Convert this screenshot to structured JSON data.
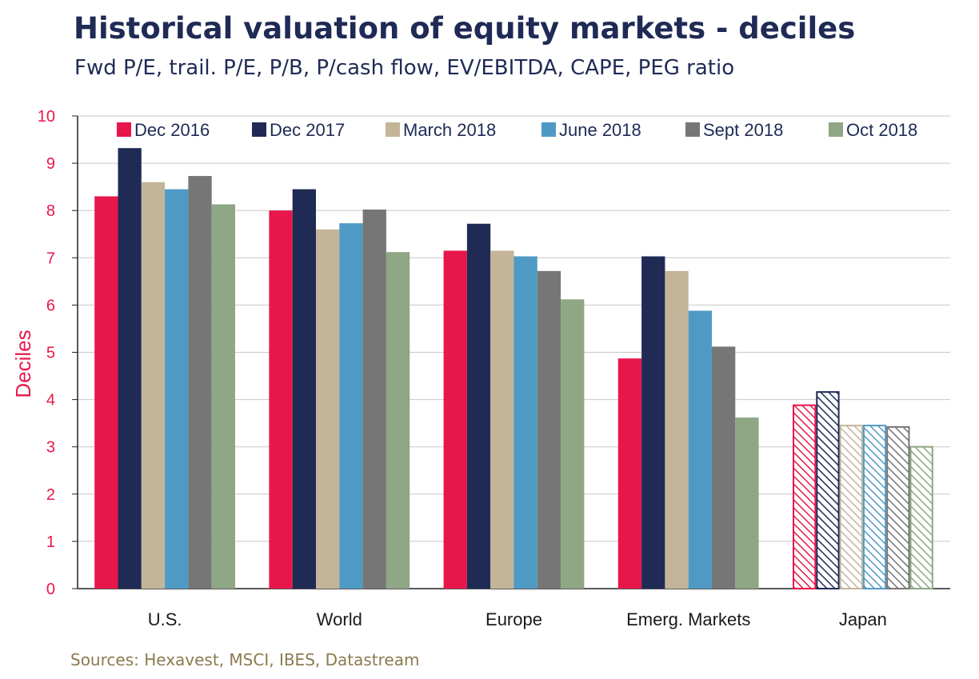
{
  "title": "Historical valuation of equity markets - deciles",
  "subtitle": "Fwd P/E, trail. P/E, P/B, P/cash flow, EV/EBITDA, CAPE, PEG ratio",
  "source": "Sources: Hexavest, MSCI, IBES, Datastream",
  "colors": {
    "title": "#1f2a55",
    "axis_label": "#e8174b",
    "source": "#8b7a4e",
    "grid": "#c8c8c8"
  },
  "chart_data": {
    "type": "bar",
    "ylabel": "Deciles",
    "ylim": [
      0,
      10
    ],
    "yticks": [
      "0",
      "1",
      "2",
      "3",
      "4",
      "5",
      "6",
      "7",
      "8",
      "9",
      "10"
    ],
    "grid": true,
    "legend_position": "top",
    "categories": [
      "U.S.",
      "World",
      "Europe",
      "Emerg. Markets",
      "Japan"
    ],
    "hatched_categories": [
      "Japan"
    ],
    "series": [
      {
        "name": "Dec 2016",
        "color": "#e8174b",
        "values": [
          8.3,
          8.0,
          7.15,
          4.87,
          3.88
        ]
      },
      {
        "name": "Dec 2017",
        "color": "#1f2a55",
        "values": [
          9.32,
          8.45,
          7.72,
          7.03,
          4.16
        ]
      },
      {
        "name": "March 2018",
        "color": "#c4b59a",
        "values": [
          8.6,
          7.6,
          7.15,
          6.72,
          3.45
        ]
      },
      {
        "name": "June 2018",
        "color": "#4f9ac4",
        "values": [
          8.45,
          7.73,
          7.03,
          5.88,
          3.45
        ]
      },
      {
        "name": "Sept 2018",
        "color": "#767676",
        "values": [
          8.73,
          8.02,
          6.72,
          5.12,
          3.42
        ]
      },
      {
        "name": "Oct 2018",
        "color": "#8fa784",
        "values": [
          8.13,
          7.12,
          6.12,
          3.62,
          3.0
        ]
      }
    ]
  }
}
